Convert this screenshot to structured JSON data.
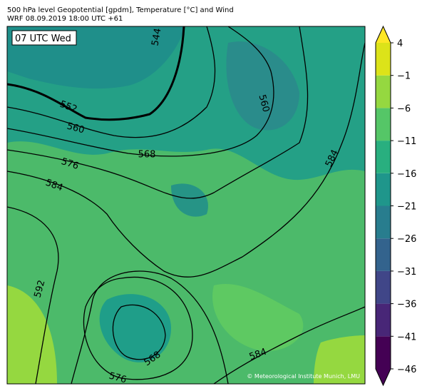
{
  "header": {
    "title": "500 hPa level Geopotential [gpdm], Temperature [°C] and Wind",
    "subtitle": "WRF 08.09.2019 18:00 UTC +61"
  },
  "map": {
    "time_label": "07 UTC Wed",
    "credit": "© Meteorological Institute Munich, LMU",
    "contour_labels": [
      544,
      552,
      560,
      568,
      576,
      584,
      592,
      560,
      584,
      568,
      576,
      584
    ]
  },
  "colorbar": {
    "lim": [
      -46,
      4
    ],
    "ticks": [
      4,
      {
        "value": -1,
        "label": "−1"
      },
      {
        "value": -6,
        "label": "−6"
      },
      {
        "value": -11,
        "label": "−11"
      },
      {
        "value": -16,
        "label": "−16"
      },
      {
        "value": -21,
        "label": "−21"
      },
      {
        "value": -26,
        "label": "−26"
      },
      {
        "value": -31,
        "label": "−31"
      },
      {
        "value": -36,
        "label": "−36"
      },
      {
        "value": -41,
        "label": "−41"
      },
      {
        "value": -46,
        "label": "−46"
      }
    ],
    "colors": [
      "#440154",
      "#482677",
      "#404688",
      "#33638d",
      "#287d8e",
      "#1f968b",
      "#29af7f",
      "#55c667",
      "#95d840",
      "#dce319"
    ],
    "under_color": "#440154",
    "over_color": "#fde725"
  }
}
